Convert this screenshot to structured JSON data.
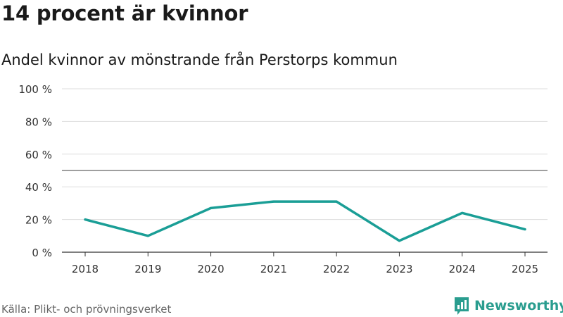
{
  "title": "14 procent är kvinnor",
  "subtitle": "Andel kvinnor av mönstrande från Perstorps kommun",
  "source": "Källa: Plikt- och prövningsverket",
  "brand": "Newsworthy",
  "colors": {
    "line": "#1a9e96",
    "reference": "#666666",
    "grid": "#dddddd",
    "brand": "#2a9d8f"
  },
  "chart_data": {
    "type": "line",
    "title": "14 procent är kvinnor",
    "subtitle": "Andel kvinnor av mönstrande från Perstorps kommun",
    "x": [
      "2018",
      "2019",
      "2020",
      "2021",
      "2022",
      "2023",
      "2024",
      "2025"
    ],
    "series": [
      {
        "values": [
          20,
          10,
          27,
          31,
          31,
          7,
          24,
          14
        ]
      }
    ],
    "reference_line": 50,
    "ylim": [
      0,
      100
    ],
    "yticks": [
      0,
      20,
      40,
      60,
      80,
      100
    ],
    "ytick_labels": [
      "0 %",
      "20 %",
      "40 %",
      "60 %",
      "80 %",
      "100 %"
    ],
    "grid": true,
    "legend": "none"
  }
}
